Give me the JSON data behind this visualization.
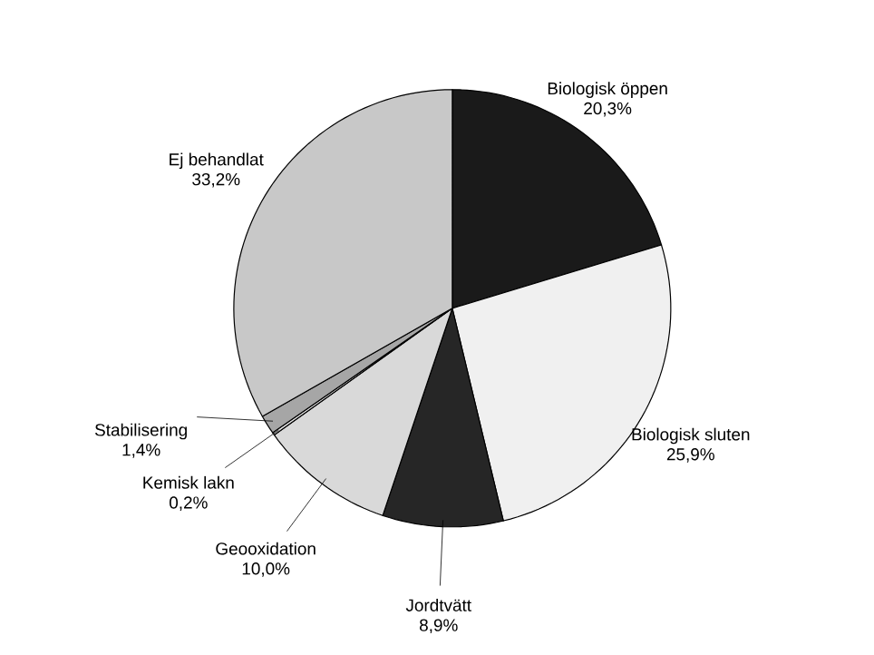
{
  "chart_data": {
    "type": "pie",
    "categories": [
      "Biologisk öppen",
      "Biologisk sluten",
      "Jordtvätt",
      "Geooxidation",
      "Kemisk lakn",
      "Stabilisering",
      "Ej behandlat"
    ],
    "values": [
      20.3,
      25.9,
      8.9,
      10.0,
      0.2,
      1.4,
      33.2
    ],
    "value_labels": [
      "20,3%",
      "25,9%",
      "8,9%",
      "10,0%",
      "0,2%",
      "1,4%",
      "33,2%"
    ],
    "colors": [
      "#1a1a1a",
      "#f0f0f0",
      "#262626",
      "#d9d9d9",
      "#e6e6e6",
      "#a6a6a6",
      "#c8c8c8"
    ]
  }
}
